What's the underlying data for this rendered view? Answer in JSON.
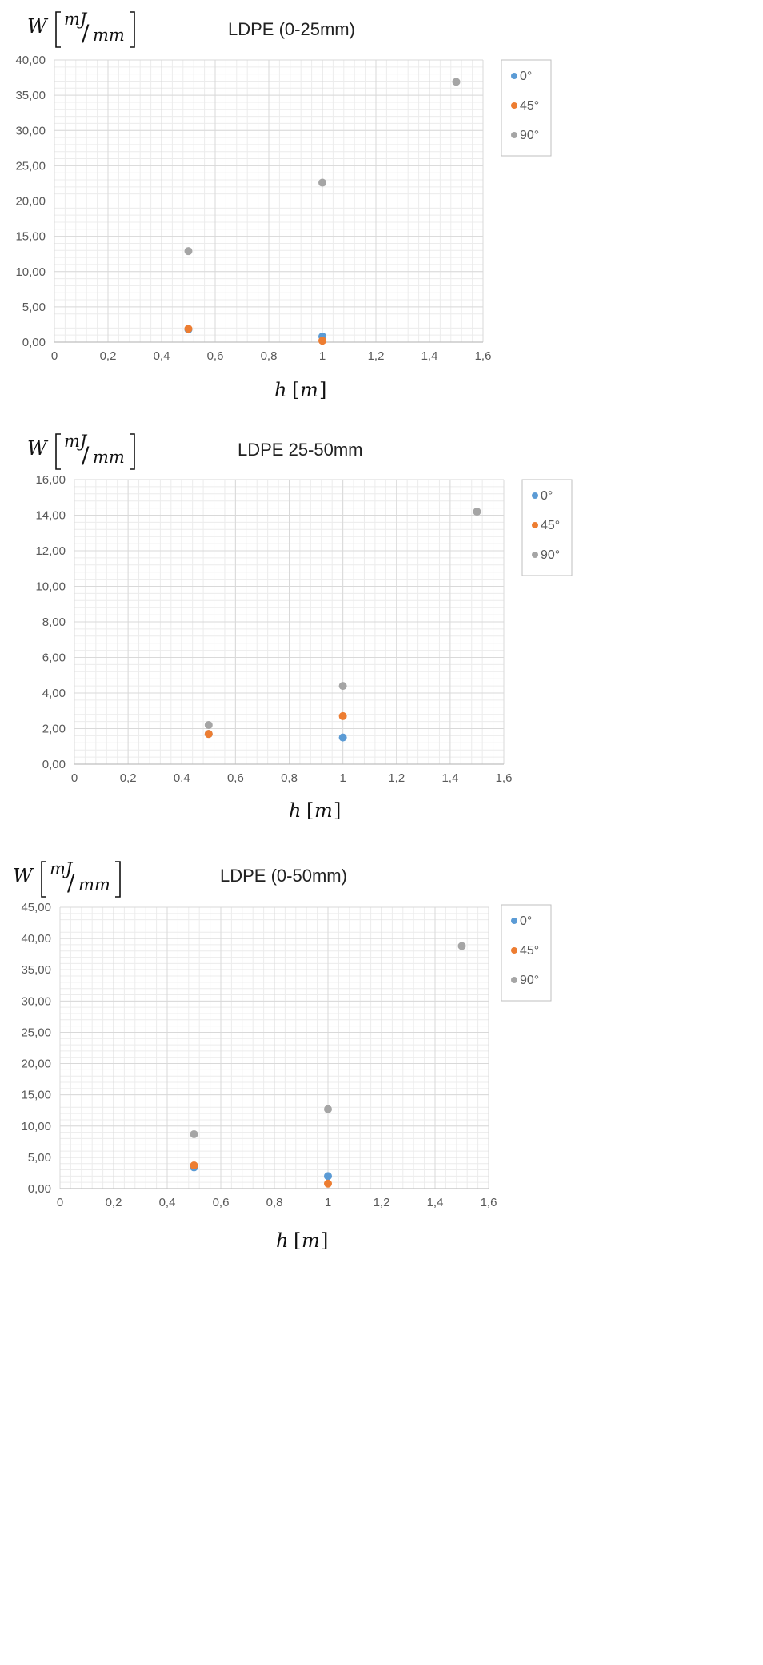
{
  "colors": {
    "s0": "#5b9bd5",
    "s45": "#ed7d31",
    "s90": "#a5a5a5",
    "grid_major": "#d9d9d9",
    "grid_minor": "#ececec",
    "frame": "#bfbfbf",
    "text": "#595959"
  },
  "chart_data": [
    {
      "type": "scatter",
      "title": "LDPE (0-25mm)",
      "ylabel": {
        "var": "W",
        "num": "mJ",
        "den": "mm"
      },
      "xlabel": {
        "var": "h",
        "unit": "m"
      },
      "xlim": [
        0,
        1.6
      ],
      "ylim": [
        0,
        40
      ],
      "xticks": [
        "0",
        "0,2",
        "0,4",
        "0,6",
        "0,8",
        "1",
        "1,2",
        "1,4",
        "1,6"
      ],
      "yticks": [
        "0,00",
        "5,00",
        "10,00",
        "15,00",
        "20,00",
        "25,00",
        "30,00",
        "35,00",
        "40,00"
      ],
      "grid": true,
      "legend_position": "right",
      "series": [
        {
          "name": "0°",
          "color_key": "s0",
          "points": [
            [
              0.5,
              1.8
            ],
            [
              1.0,
              0.8
            ]
          ]
        },
        {
          "name": "45°",
          "color_key": "s45",
          "points": [
            [
              0.5,
              1.9
            ],
            [
              1.0,
              0.2
            ]
          ]
        },
        {
          "name": "90°",
          "color_key": "s90",
          "points": [
            [
              0.5,
              12.9
            ],
            [
              1.0,
              22.6
            ],
            [
              1.5,
              36.9
            ]
          ]
        }
      ]
    },
    {
      "type": "scatter",
      "title": "LDPE 25-50mm",
      "ylabel": {
        "var": "W",
        "num": "mJ",
        "den": "mm"
      },
      "xlabel": {
        "var": "h",
        "unit": "m"
      },
      "xlim": [
        0,
        1.6
      ],
      "ylim": [
        0,
        16
      ],
      "xticks": [
        "0",
        "0,2",
        "0,4",
        "0,6",
        "0,8",
        "1",
        "1,2",
        "1,4",
        "1,6"
      ],
      "yticks": [
        "0,00",
        "2,00",
        "4,00",
        "6,00",
        "8,00",
        "10,00",
        "12,00",
        "14,00",
        "16,00"
      ],
      "grid": true,
      "legend_position": "right",
      "series": [
        {
          "name": "0°",
          "color_key": "s0",
          "points": [
            [
              0.5,
              1.7
            ],
            [
              1.0,
              1.5
            ]
          ]
        },
        {
          "name": "45°",
          "color_key": "s45",
          "points": [
            [
              0.5,
              1.7
            ],
            [
              1.0,
              2.7
            ]
          ]
        },
        {
          "name": "90°",
          "color_key": "s90",
          "points": [
            [
              0.5,
              2.2
            ],
            [
              1.0,
              4.4
            ],
            [
              1.5,
              14.2
            ]
          ]
        }
      ]
    },
    {
      "type": "scatter",
      "title": "LDPE (0-50mm)",
      "ylabel": {
        "var": "W",
        "num": "mJ",
        "den": "mm"
      },
      "xlabel": {
        "var": "h",
        "unit": "m"
      },
      "xlim": [
        0,
        1.6
      ],
      "ylim": [
        0,
        45
      ],
      "xticks": [
        "0",
        "0,2",
        "0,4",
        "0,6",
        "0,8",
        "1",
        "1,2",
        "1,4",
        "1,6"
      ],
      "yticks": [
        "0,00",
        "5,00",
        "10,00",
        "15,00",
        "20,00",
        "25,00",
        "30,00",
        "35,00",
        "40,00",
        "45,00"
      ],
      "grid": true,
      "legend_position": "right",
      "series": [
        {
          "name": "0°",
          "color_key": "s0",
          "points": [
            [
              0.5,
              3.4
            ],
            [
              1.0,
              2.0
            ]
          ]
        },
        {
          "name": "45°",
          "color_key": "s45",
          "points": [
            [
              0.5,
              3.7
            ],
            [
              1.0,
              0.8
            ]
          ]
        },
        {
          "name": "90°",
          "color_key": "s90",
          "points": [
            [
              0.5,
              8.7
            ],
            [
              1.0,
              12.7
            ],
            [
              1.5,
              38.8
            ]
          ]
        }
      ]
    }
  ]
}
